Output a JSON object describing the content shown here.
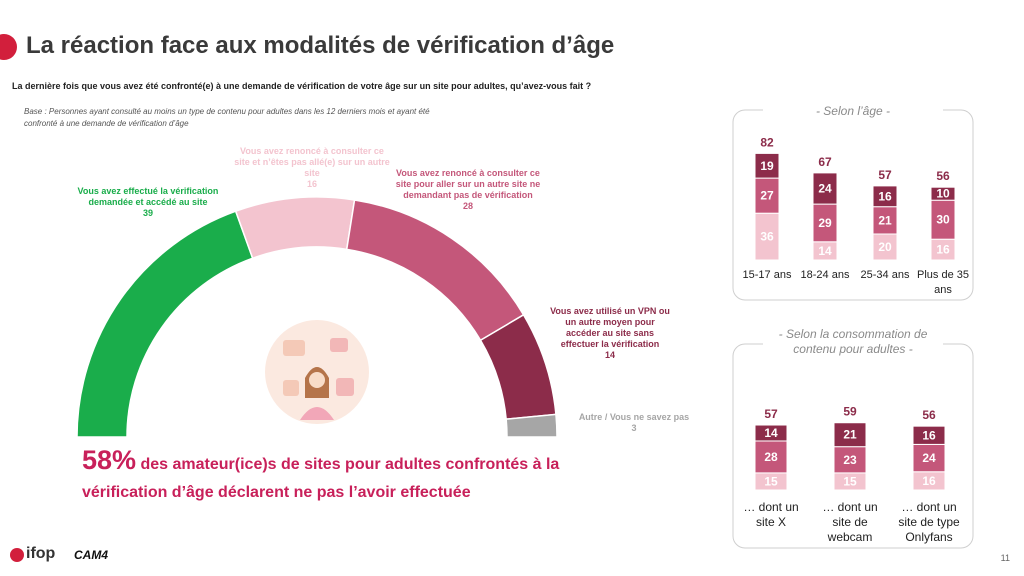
{
  "title": "La réaction face aux modalités de vérification d’âge",
  "question": "La dernière fois que vous avez été confronté(e) à une demande de vérification de votre âge sur un site pour adultes, qu’avez-vous fait ?",
  "base": "Base : Personnes ayant consulté au moins un type de contenu pour adultes dans les 12 derniers mois et ayant été confronté à une demande de vérification d’âge",
  "callout": {
    "highlight": "58%",
    "text": "des amateur(ice)s de sites pour adultes confrontés à la vérification d’âge déclarent ne pas l’avoir effectuée"
  },
  "logos": [
    "ifop",
    "CAM4"
  ],
  "page_number": "11",
  "chart_data": [
    {
      "type": "donut",
      "categories": [
        "Vous avez effectué la vérification demandée et accédé au site",
        "Vous avez renoncé à consulter ce site et n’êtes pas allé(e) sur un autre site",
        "Vous avez renoncé à consulter ce site pour aller sur un autre site ne demandant pas de vérification",
        "Vous avez utilisé un VPN ou un autre moyen pour accéder au site sans effectuer la vérification",
        "Autre / Vous ne savez pas"
      ],
      "values": [
        39,
        16,
        28,
        14,
        3
      ],
      "colors": [
        "#1aad4b",
        "#f3c4cf",
        "#c4577a",
        "#8c2c4a",
        "#a6a6a6"
      ]
    },
    {
      "type": "bar",
      "stacked": true,
      "subtitle": "- Selon l’âge -",
      "categories": [
        "15-17 ans",
        "18-24 ans",
        "25-34 ans",
        "Plus de 35 ans"
      ],
      "totals": [
        82,
        67,
        57,
        56
      ],
      "series": [
        {
          "color": "#f3c4cf",
          "values": [
            36,
            14,
            20,
            16
          ]
        },
        {
          "color": "#c4577a",
          "values": [
            27,
            29,
            21,
            30
          ]
        },
        {
          "color": "#8c2c4a",
          "values": [
            19,
            24,
            16,
            10
          ]
        }
      ]
    },
    {
      "type": "bar",
      "stacked": true,
      "subtitle": "- Selon la consommation de contenu pour adultes -",
      "categories": [
        "… dont un site X",
        "… dont un site de webcam",
        "… dont un site de type Onlyfans"
      ],
      "totals": [
        57,
        59,
        56
      ],
      "series": [
        {
          "color": "#f3c4cf",
          "values": [
            15,
            15,
            16
          ]
        },
        {
          "color": "#c4577a",
          "values": [
            28,
            23,
            24
          ]
        },
        {
          "color": "#8c2c4a",
          "values": [
            14,
            21,
            16
          ]
        }
      ]
    }
  ]
}
